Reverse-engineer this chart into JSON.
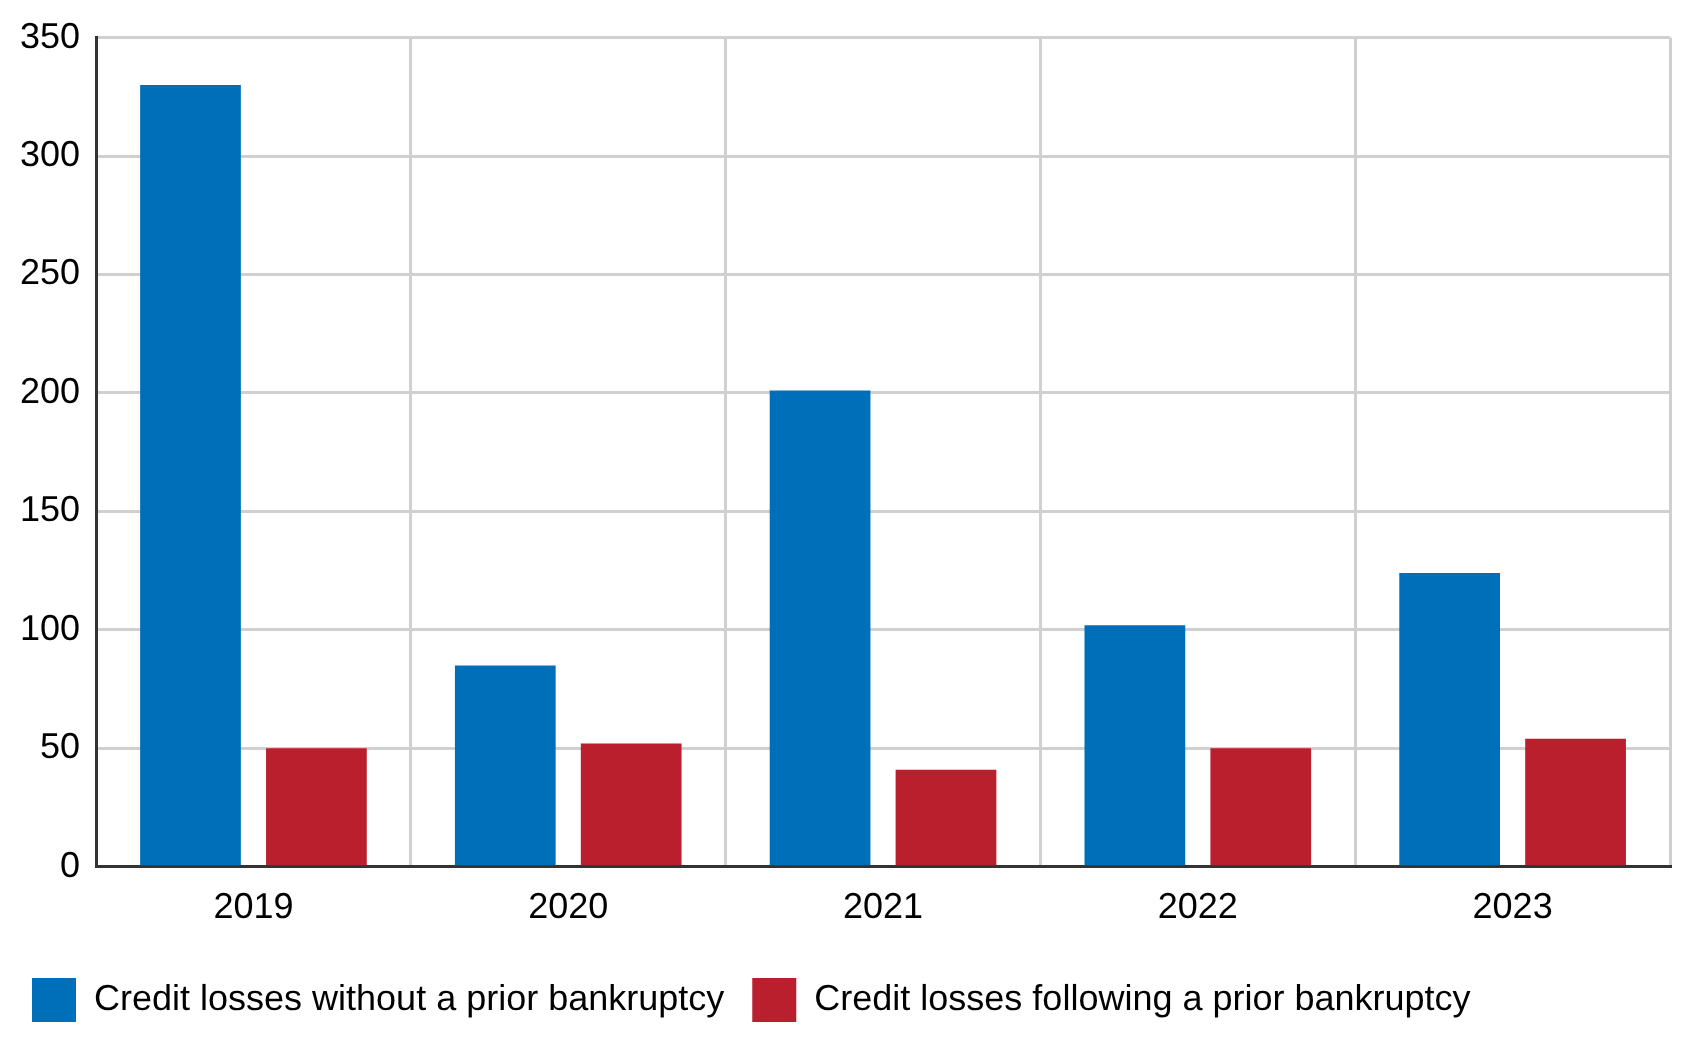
{
  "chart_data": {
    "type": "bar",
    "categories": [
      "2019",
      "2020",
      "2021",
      "2022",
      "2023"
    ],
    "series": [
      {
        "name": "Credit losses without a prior bankruptcy",
        "color": "#006fb9",
        "values": [
          330,
          85,
          201,
          102,
          124
        ]
      },
      {
        "name": "Credit losses following a prior bankruptcy",
        "color": "#b91f2c",
        "values": [
          50,
          52,
          41,
          50,
          54
        ]
      }
    ],
    "ylim": [
      0,
      350
    ],
    "yticks": [
      0,
      50,
      100,
      150,
      200,
      250,
      300,
      350
    ],
    "grid": true,
    "legend": "bottom left"
  }
}
